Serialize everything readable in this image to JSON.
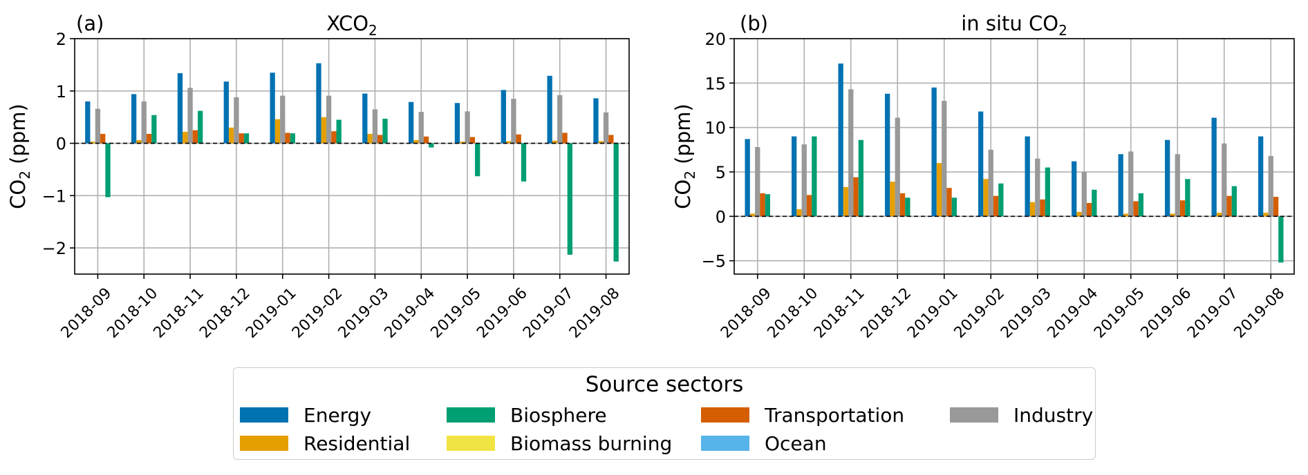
{
  "chart_data": [
    {
      "type": "bar",
      "panel_label": "(a)",
      "title": "XCO",
      "title_sub": "2",
      "ylabel_pre": "CO",
      "ylabel_sub": "2",
      "ylabel_post": " (ppm)",
      "ylim": [
        -2.5,
        2
      ],
      "yticks": [
        -2,
        -1,
        0,
        1,
        2
      ],
      "ytick_labels": [
        "−2",
        "−1",
        "0",
        "1",
        "2"
      ],
      "grid": true,
      "categories": [
        "2018-09",
        "2018-10",
        "2018-11",
        "2018-12",
        "2019-01",
        "2019-02",
        "2019-03",
        "2019-04",
        "2019-05",
        "2019-06",
        "2019-07",
        "2019-08"
      ],
      "series": [
        {
          "name": "Energy",
          "values": [
            0.8,
            0.94,
            1.34,
            1.18,
            1.35,
            1.53,
            0.95,
            0.79,
            0.77,
            1.02,
            1.29,
            0.86
          ]
        },
        {
          "name": "Residential",
          "values": [
            0.03,
            0.06,
            0.22,
            0.3,
            0.46,
            0.5,
            0.18,
            0.06,
            0.03,
            0.04,
            0.05,
            0.04
          ]
        },
        {
          "name": "Biomass burning",
          "values": [
            0.0,
            0.0,
            0.0,
            0.0,
            0.0,
            0.0,
            0.0,
            0.0,
            0.0,
            0.0,
            0.0,
            0.0
          ]
        },
        {
          "name": "Industry",
          "values": [
            0.66,
            0.8,
            1.06,
            0.88,
            0.91,
            0.91,
            0.65,
            0.6,
            0.61,
            0.85,
            0.92,
            0.59
          ]
        },
        {
          "name": "Transportation",
          "values": [
            0.18,
            0.18,
            0.25,
            0.19,
            0.2,
            0.23,
            0.16,
            0.13,
            0.12,
            0.17,
            0.2,
            0.16
          ]
        },
        {
          "name": "Biosphere",
          "values": [
            -1.03,
            0.54,
            0.62,
            0.19,
            0.19,
            0.45,
            0.47,
            -0.08,
            -0.63,
            -0.73,
            -2.13,
            -2.26
          ]
        },
        {
          "name": "Ocean",
          "values": [
            0.0,
            0.0,
            0.0,
            0.0,
            0.0,
            0.0,
            0.0,
            0.0,
            0.0,
            0.0,
            0.0,
            0.0
          ]
        }
      ]
    },
    {
      "type": "bar",
      "panel_label": "(b)",
      "title": "in situ CO",
      "title_sub": "2",
      "ylabel_pre": "CO",
      "ylabel_sub": "2",
      "ylabel_post": " (ppm)",
      "ylim": [
        -6.5,
        20
      ],
      "yticks": [
        -5,
        0,
        5,
        10,
        15,
        20
      ],
      "ytick_labels": [
        "−5",
        "0",
        "5",
        "10",
        "15",
        "20"
      ],
      "grid": true,
      "categories": [
        "2018-09",
        "2018-10",
        "2018-11",
        "2018-12",
        "2019-01",
        "2019-02",
        "2019-03",
        "2019-04",
        "2019-05",
        "2019-06",
        "2019-07",
        "2019-08"
      ],
      "series": [
        {
          "name": "Energy",
          "values": [
            8.7,
            9.0,
            17.2,
            13.8,
            14.5,
            11.8,
            9.0,
            6.2,
            7.0,
            8.6,
            11.1,
            9.0
          ]
        },
        {
          "name": "Residential",
          "values": [
            0.3,
            0.8,
            3.3,
            3.9,
            6.0,
            4.2,
            1.6,
            0.5,
            0.3,
            0.3,
            0.4,
            0.4
          ]
        },
        {
          "name": "Biomass burning",
          "values": [
            0.0,
            0.0,
            0.0,
            0.0,
            0.0,
            0.0,
            0.0,
            0.0,
            0.0,
            0.0,
            0.0,
            0.0
          ]
        },
        {
          "name": "Industry",
          "values": [
            7.8,
            8.1,
            14.3,
            11.1,
            13.0,
            7.5,
            6.5,
            5.0,
            7.3,
            7.0,
            8.2,
            6.8
          ]
        },
        {
          "name": "Transportation",
          "values": [
            2.6,
            2.4,
            4.4,
            2.6,
            3.2,
            2.3,
            1.9,
            1.5,
            1.7,
            1.8,
            2.3,
            2.2
          ]
        },
        {
          "name": "Biosphere",
          "values": [
            2.5,
            9.0,
            8.6,
            2.1,
            2.1,
            3.7,
            5.5,
            3.0,
            2.6,
            4.2,
            3.4,
            -5.2
          ]
        },
        {
          "name": "Ocean",
          "values": [
            0.0,
            0.0,
            0.0,
            0.0,
            0.0,
            0.0,
            0.0,
            0.0,
            0.0,
            0.0,
            0.0,
            0.0
          ]
        }
      ]
    }
  ],
  "colors": {
    "Energy": "#0072B2",
    "Residential": "#E69F00",
    "Biosphere": "#009E73",
    "Biomass burning": "#F0E442",
    "Transportation": "#D55E00",
    "Ocean": "#56B4E9",
    "Industry": "#999999"
  },
  "legend": {
    "title": "Source sectors",
    "items": [
      {
        "name": "Energy",
        "color": "#0072B2"
      },
      {
        "name": "Residential",
        "color": "#E69F00"
      },
      {
        "name": "Biosphere",
        "color": "#009E73"
      },
      {
        "name": "Biomass burning",
        "color": "#F0E442"
      },
      {
        "name": "Transportation",
        "color": "#D55E00"
      },
      {
        "name": "Ocean",
        "color": "#56B4E9"
      },
      {
        "name": "Industry",
        "color": "#999999"
      }
    ]
  }
}
